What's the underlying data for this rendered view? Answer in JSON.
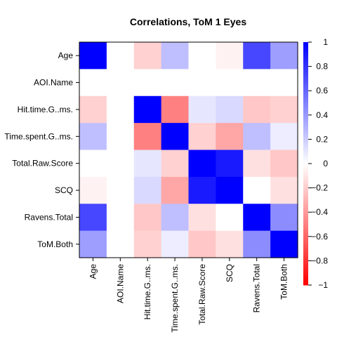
{
  "chart_data": {
    "type": "heatmap",
    "title": "Correlations, ToM 1 Eyes",
    "xlabel": "",
    "ylabel": "",
    "variables": [
      "Age",
      "AOI.Name",
      "Hit.time.G..ms.",
      "Time.spent.G..ms.",
      "Total.Raw.Score",
      "SCQ",
      "Ravens.Total",
      "ToM.Both"
    ],
    "values": [
      [
        1.0,
        null,
        -0.18,
        0.25,
        0.0,
        -0.05,
        0.72,
        0.38
      ],
      [
        null,
        null,
        null,
        null,
        null,
        null,
        null,
        null
      ],
      [
        -0.18,
        null,
        1.0,
        -0.5,
        0.1,
        0.15,
        -0.22,
        -0.18
      ],
      [
        0.25,
        null,
        -0.5,
        1.0,
        -0.18,
        -0.35,
        0.25,
        0.07
      ],
      [
        0.0,
        null,
        0.1,
        -0.18,
        1.0,
        0.9,
        -0.12,
        -0.22
      ],
      [
        -0.05,
        null,
        0.15,
        -0.35,
        0.9,
        1.0,
        0.0,
        -0.12
      ],
      [
        0.72,
        null,
        -0.22,
        0.25,
        -0.12,
        0.0,
        1.0,
        0.45
      ],
      [
        0.38,
        null,
        -0.18,
        0.07,
        -0.22,
        -0.12,
        0.45,
        1.0
      ]
    ],
    "colorbar": {
      "range": [
        -1,
        1
      ],
      "ticks": [
        1,
        0.8,
        0.6,
        0.4,
        0.2,
        0,
        -0.2,
        -0.4,
        -0.6,
        -0.8,
        -1
      ],
      "tick_labels": [
        "1",
        "0.8",
        "0.6",
        "0.4",
        "0.2",
        "0",
        "−0.2",
        "−0.4",
        "−0.6",
        "−0.8",
        "−1"
      ],
      "colors": {
        "positive": "#0000ff",
        "zero": "#ffffff",
        "negative": "#ff0000"
      }
    },
    "grid": false,
    "legend": "right"
  }
}
